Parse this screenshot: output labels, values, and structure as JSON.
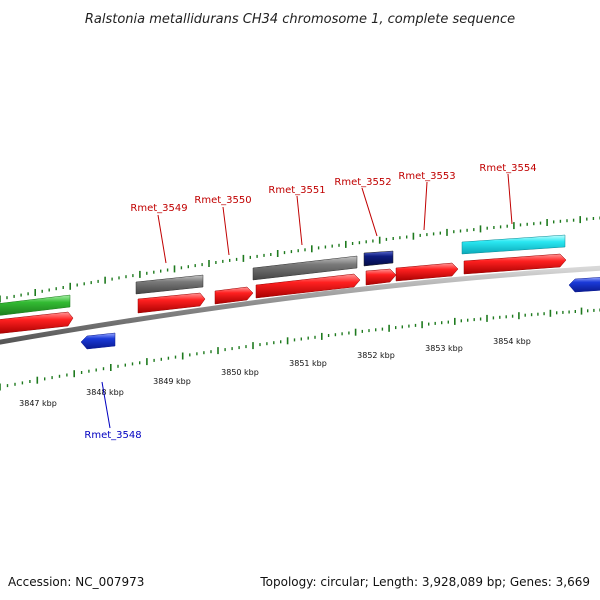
{
  "title": "Ralstonia metallidurans CH34 chromosome 1, complete sequence",
  "footer": {
    "accession": "Accession: NC_007973",
    "summary": "Topology: circular; Length: 3,928,089 bp; Genes: 3,669"
  },
  "colors": {
    "backbone": "#8a8a8a",
    "tick": "#1e7a1e",
    "forward_label": "#c00000",
    "reverse_label": "#0000c0",
    "gene_red": "#ee1111",
    "gene_green": "#33bb33",
    "gene_gray": "#6e6e6e",
    "gene_navy": "#0a1a7a",
    "gene_cyan": "#22e6f0",
    "gene_blue": "#1a3ad8"
  },
  "scale": {
    "kbp_labels": [
      "3847 kbp",
      "3848 kbp",
      "3849 kbp",
      "3850 kbp",
      "3851 kbp",
      "3852 kbp",
      "3853 kbp",
      "3854 kbp"
    ]
  },
  "labels": {
    "forward": [
      "Rmet_3549",
      "Rmet_3550",
      "Rmet_3551",
      "Rmet_3552",
      "Rmet_3553",
      "Rmet_3554"
    ],
    "reverse": [
      "Rmet_3548"
    ]
  }
}
